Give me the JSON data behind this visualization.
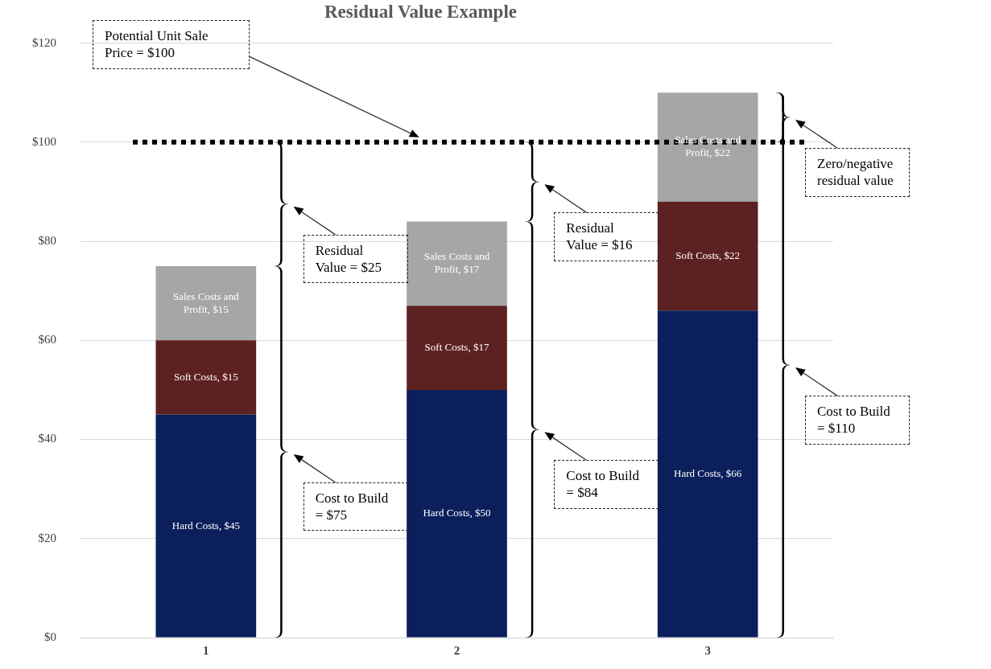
{
  "chart_data": {
    "type": "bar",
    "title": "Residual Value Example",
    "stacked": true,
    "categories": [
      "1",
      "2",
      "3"
    ],
    "series": [
      {
        "color": "#0b1f5c",
        "values": [
          45,
          50,
          66
        ],
        "value_labels": [
          "Hard Costs, $45",
          "Hard Costs, $50",
          "Hard Costs, $66"
        ]
      },
      {
        "color": "#5e2121",
        "values": [
          15,
          17,
          22
        ],
        "value_labels": [
          "Soft Costs, $15",
          "Soft Costs, $17",
          "Soft Costs, $22"
        ]
      },
      {
        "color": "#a6a6a6",
        "values": [
          15,
          17,
          22
        ],
        "value_labels": [
          "Sales Costs and Profit, $15",
          "Sales Costs and Profit, $17",
          "Sales Costs and Profit, $22"
        ]
      }
    ],
    "ylim": [
      0,
      120
    ],
    "yticks": [
      {
        "value": 0,
        "label": "$0"
      },
      {
        "value": 20,
        "label": "$20"
      },
      {
        "value": 40,
        "label": "$40"
      },
      {
        "value": 60,
        "label": "$60"
      },
      {
        "value": 80,
        "label": "$80"
      },
      {
        "value": 100,
        "label": "$100"
      },
      {
        "value": 120,
        "label": "$120"
      }
    ],
    "grid": "y",
    "legend": false,
    "ref_lines": [
      {
        "axis": "y",
        "value": 100,
        "color": "#000000",
        "line_style": "dotted"
      }
    ],
    "annotations": [
      "Potential Unit Sale Price = $100",
      "Residual Value = $25",
      "Cost to Build = $75",
      "Residual Value = $16",
      "Cost to Build = $84",
      "Zero/negative residual value",
      "Cost to Build = $110"
    ]
  }
}
